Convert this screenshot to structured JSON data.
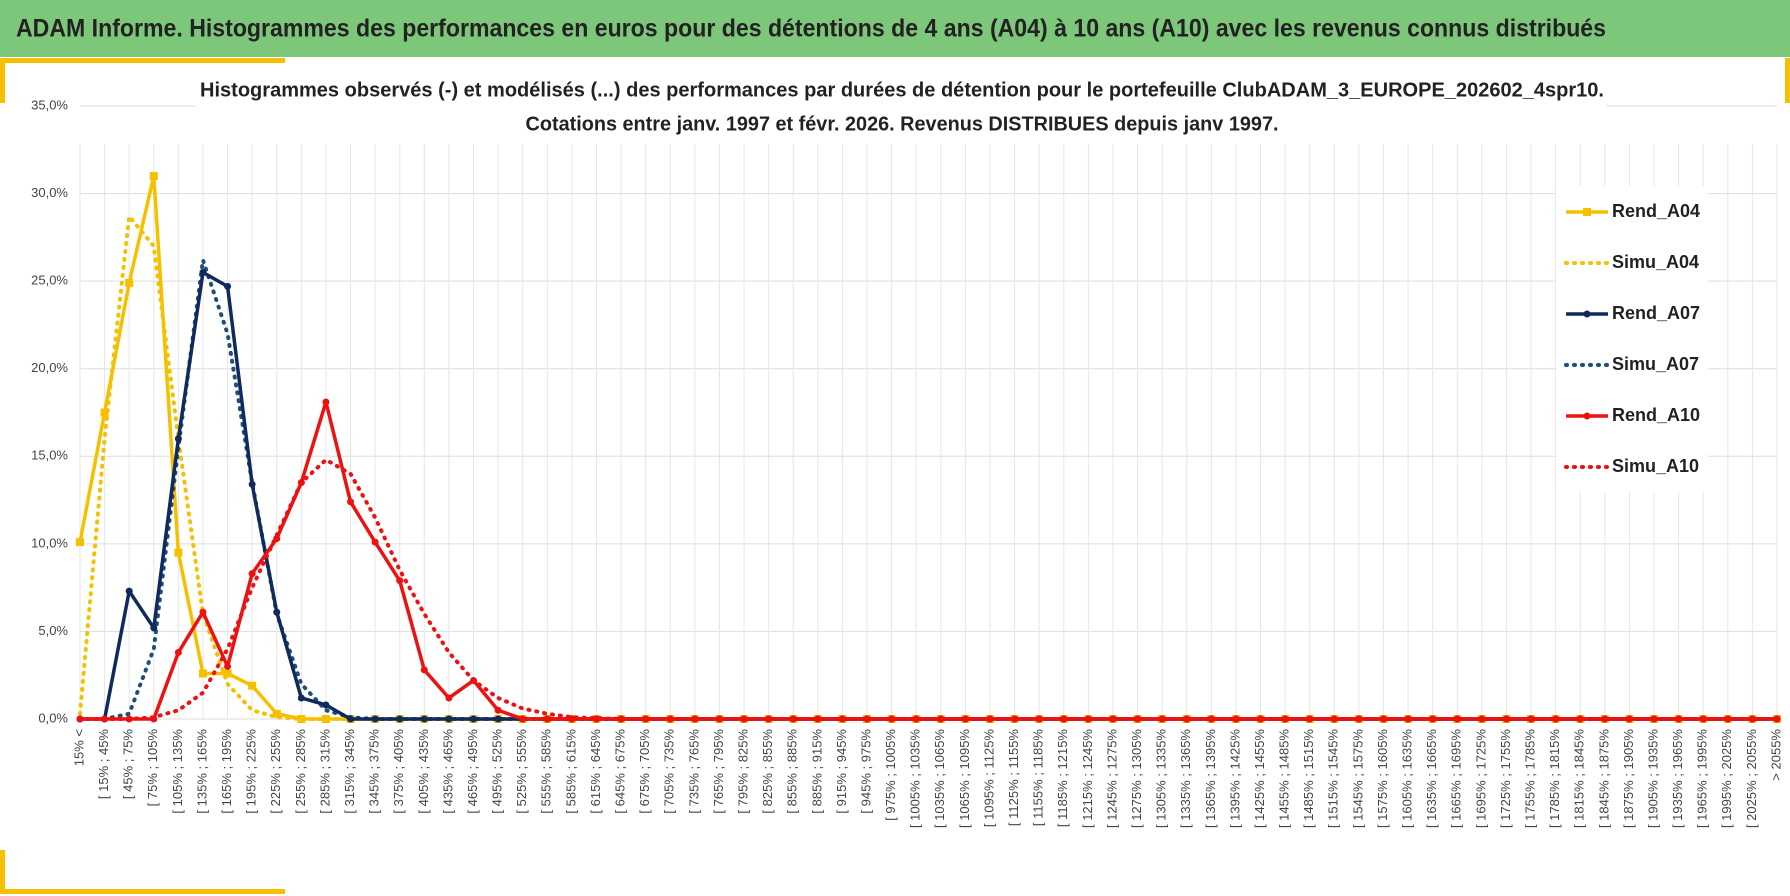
{
  "banner": {
    "title": "ADAM Informe. Histogrammes des performances en euros pour des détentions de 4 ans (A04) à 10 ans (A10) avec les revenus connus distribués"
  },
  "chart_data": {
    "type": "line",
    "title": "Histogrammes observés (-) et modélisés (...) des performances par durées de détention pour le portefeuille ClubADAM_3_EUROPE_202602_4spr10.",
    "subtitle": "Cotations entre janv. 1997 et févr. 2026. Revenus DISTRIBUES depuis janv 1997.",
    "categories": [
      "15% <",
      "[ 15% ; 45%",
      "[ 45% ; 75%",
      "[ 75% ; 105%",
      "[ 105% ; 135%",
      "[ 135% ; 165%",
      "[ 165% ; 195%",
      "[ 195% ; 225%",
      "[ 225% ; 255%",
      "[ 255% ; 285%",
      "[ 285% ; 315%",
      "[ 315% ; 345%",
      "[ 345% ; 375%",
      "[ 375% ; 405%",
      "[ 405% ; 435%",
      "[ 435% ; 465%",
      "[ 465% ; 495%",
      "[ 495% ; 525%",
      "[ 525% ; 555%",
      "[ 555% ; 585%",
      "[ 585% ; 615%",
      "[ 615% ; 645%",
      "[ 645% ; 675%",
      "[ 675% ; 705%",
      "[ 705% ; 735%",
      "[ 735% ; 765%",
      "[ 765% ; 795%",
      "[ 795% ; 825%",
      "[ 825% ; 855%",
      "[ 855% ; 885%",
      "[ 885% ; 915%",
      "[ 915% ; 945%",
      "[ 945% ; 975%",
      "[ 975% ; 1005%",
      "[ 1005% ; 1035%",
      "[ 1035% ; 1065%",
      "[ 1065% ; 1095%",
      "[ 1095% ; 1125%",
      "[ 1125% ; 1155%",
      "[ 1155% ; 1185%",
      "[ 1185% ; 1215%",
      "[ 1215% ; 1245%",
      "[ 1245% ; 1275%",
      "[ 1275% ; 1305%",
      "[ 1305% ; 1335%",
      "[ 1335% ; 1365%",
      "[ 1365% ; 1395%",
      "[ 1395% ; 1425%",
      "[ 1425% ; 1455%",
      "[ 1455% ; 1485%",
      "[ 1485% ; 1515%",
      "[ 1515% ; 1545%",
      "[ 1545% ; 1575%",
      "[ 1575% ; 1605%",
      "[ 1605% ; 1635%",
      "[ 1635% ; 1665%",
      "[ 1665% ; 1695%",
      "[ 1695% ; 1725%",
      "[ 1725% ; 1755%",
      "[ 1755% ; 1785%",
      "[ 1785% ; 1815%",
      "[ 1815% ; 1845%",
      "[ 1845% ; 1875%",
      "[ 1875% ; 1905%",
      "[ 1905% ; 1935%",
      "[ 1935% ; 1965%",
      "[ 1965% ; 1995%",
      "[ 1995% ; 2025%",
      "[ 2025% ; 2055%",
      "> 2055%"
    ],
    "series": [
      {
        "name": "Rend_A04",
        "color": "#f5c000",
        "style": "solid",
        "marker": "square",
        "values": [
          10.1,
          17.5,
          24.9,
          31.0,
          9.5,
          2.6,
          2.6,
          1.9,
          0.3,
          0,
          0,
          0,
          0,
          0,
          0,
          0,
          0,
          0,
          0,
          0,
          0,
          0,
          0,
          0,
          0,
          0,
          0,
          0,
          0,
          0,
          0,
          0,
          0,
          0,
          0,
          0,
          0,
          0,
          0,
          0,
          0,
          0,
          0,
          0,
          0,
          0,
          0,
          0,
          0,
          0,
          0,
          0,
          0,
          0,
          0,
          0,
          0,
          0,
          0,
          0,
          0,
          0,
          0,
          0,
          0,
          0,
          0,
          0,
          0,
          0
        ]
      },
      {
        "name": "Simu_A04",
        "color": "#f5c000",
        "style": "dotted",
        "marker": "none",
        "values": [
          0.3,
          16,
          28.7,
          27,
          16,
          6,
          2,
          0.5,
          0.1,
          0,
          0,
          0,
          0,
          0,
          0,
          0,
          0,
          0,
          0,
          0,
          0,
          0,
          0,
          0,
          0,
          0,
          0,
          0,
          0,
          0,
          0,
          0,
          0,
          0,
          0,
          0,
          0,
          0,
          0,
          0,
          0,
          0,
          0,
          0,
          0,
          0,
          0,
          0,
          0,
          0,
          0,
          0,
          0,
          0,
          0,
          0,
          0,
          0,
          0,
          0,
          0,
          0,
          0,
          0,
          0,
          0,
          0,
          0,
          0,
          0
        ]
      },
      {
        "name": "Rend_A07",
        "color": "#0f2a5c",
        "style": "solid",
        "marker": "circle",
        "values": [
          0,
          0,
          7.3,
          5.2,
          16.0,
          25.5,
          24.7,
          13.4,
          6.1,
          1.2,
          0.8,
          0,
          0,
          0,
          0,
          0,
          0,
          0,
          0,
          0,
          0,
          0,
          0,
          0,
          0,
          0,
          0,
          0,
          0,
          0,
          0,
          0,
          0,
          0,
          0,
          0,
          0,
          0,
          0,
          0,
          0,
          0,
          0,
          0,
          0,
          0,
          0,
          0,
          0,
          0,
          0,
          0,
          0,
          0,
          0,
          0,
          0,
          0,
          0,
          0,
          0,
          0,
          0,
          0,
          0,
          0,
          0,
          0,
          0,
          0
        ]
      },
      {
        "name": "Simu_A07",
        "color": "#1f4e79",
        "style": "dotted",
        "marker": "none",
        "values": [
          0,
          0,
          0.3,
          4,
          15.5,
          26.2,
          22,
          13.5,
          6,
          2,
          0.5,
          0.1,
          0,
          0,
          0,
          0,
          0,
          0,
          0,
          0,
          0,
          0,
          0,
          0,
          0,
          0,
          0,
          0,
          0,
          0,
          0,
          0,
          0,
          0,
          0,
          0,
          0,
          0,
          0,
          0,
          0,
          0,
          0,
          0,
          0,
          0,
          0,
          0,
          0,
          0,
          0,
          0,
          0,
          0,
          0,
          0,
          0,
          0,
          0,
          0,
          0,
          0,
          0,
          0,
          0,
          0,
          0,
          0,
          0,
          0
        ]
      },
      {
        "name": "Rend_A10",
        "color": "#ee1111",
        "style": "solid",
        "marker": "circle",
        "values": [
          0,
          0,
          0,
          0,
          3.8,
          6.1,
          3.0,
          8.3,
          10.3,
          13.5,
          18.1,
          12.4,
          10.1,
          7.9,
          2.8,
          1.2,
          2.2,
          0.5,
          0,
          0,
          0,
          0,
          0,
          0,
          0,
          0,
          0,
          0,
          0,
          0,
          0,
          0,
          0,
          0,
          0,
          0,
          0,
          0,
          0,
          0,
          0,
          0,
          0,
          0,
          0,
          0,
          0,
          0,
          0,
          0,
          0,
          0,
          0,
          0,
          0,
          0,
          0,
          0,
          0,
          0,
          0,
          0,
          0,
          0,
          0,
          0,
          0,
          0,
          0,
          0
        ]
      },
      {
        "name": "Simu_A10",
        "color": "#ee1111",
        "style": "dotted",
        "marker": "none",
        "values": [
          0,
          0,
          0,
          0.1,
          0.5,
          1.5,
          4,
          7.5,
          10.5,
          13.5,
          14.8,
          14,
          11.5,
          8.5,
          6,
          3.8,
          2.2,
          1.2,
          0.6,
          0.3,
          0.1,
          0.05,
          0,
          0,
          0,
          0,
          0,
          0,
          0,
          0,
          0,
          0,
          0,
          0,
          0,
          0,
          0,
          0,
          0,
          0,
          0,
          0,
          0,
          0,
          0,
          0,
          0,
          0,
          0,
          0,
          0,
          0,
          0,
          0,
          0,
          0,
          0,
          0,
          0,
          0,
          0,
          0,
          0,
          0,
          0,
          0,
          0,
          0,
          0,
          0
        ]
      }
    ],
    "ylim": [
      0,
      35
    ],
    "yticks": [
      {
        "value": 0,
        "label": "0,0%"
      },
      {
        "value": 5,
        "label": "5,0%"
      },
      {
        "value": 10,
        "label": "10,0%"
      },
      {
        "value": 15,
        "label": "15,0%"
      },
      {
        "value": 20,
        "label": "20,0%"
      },
      {
        "value": 25,
        "label": "25,0%"
      },
      {
        "value": 30,
        "label": "30,0%"
      },
      {
        "value": 35,
        "label": "35,0%"
      }
    ],
    "grid": true,
    "legend": "right"
  }
}
